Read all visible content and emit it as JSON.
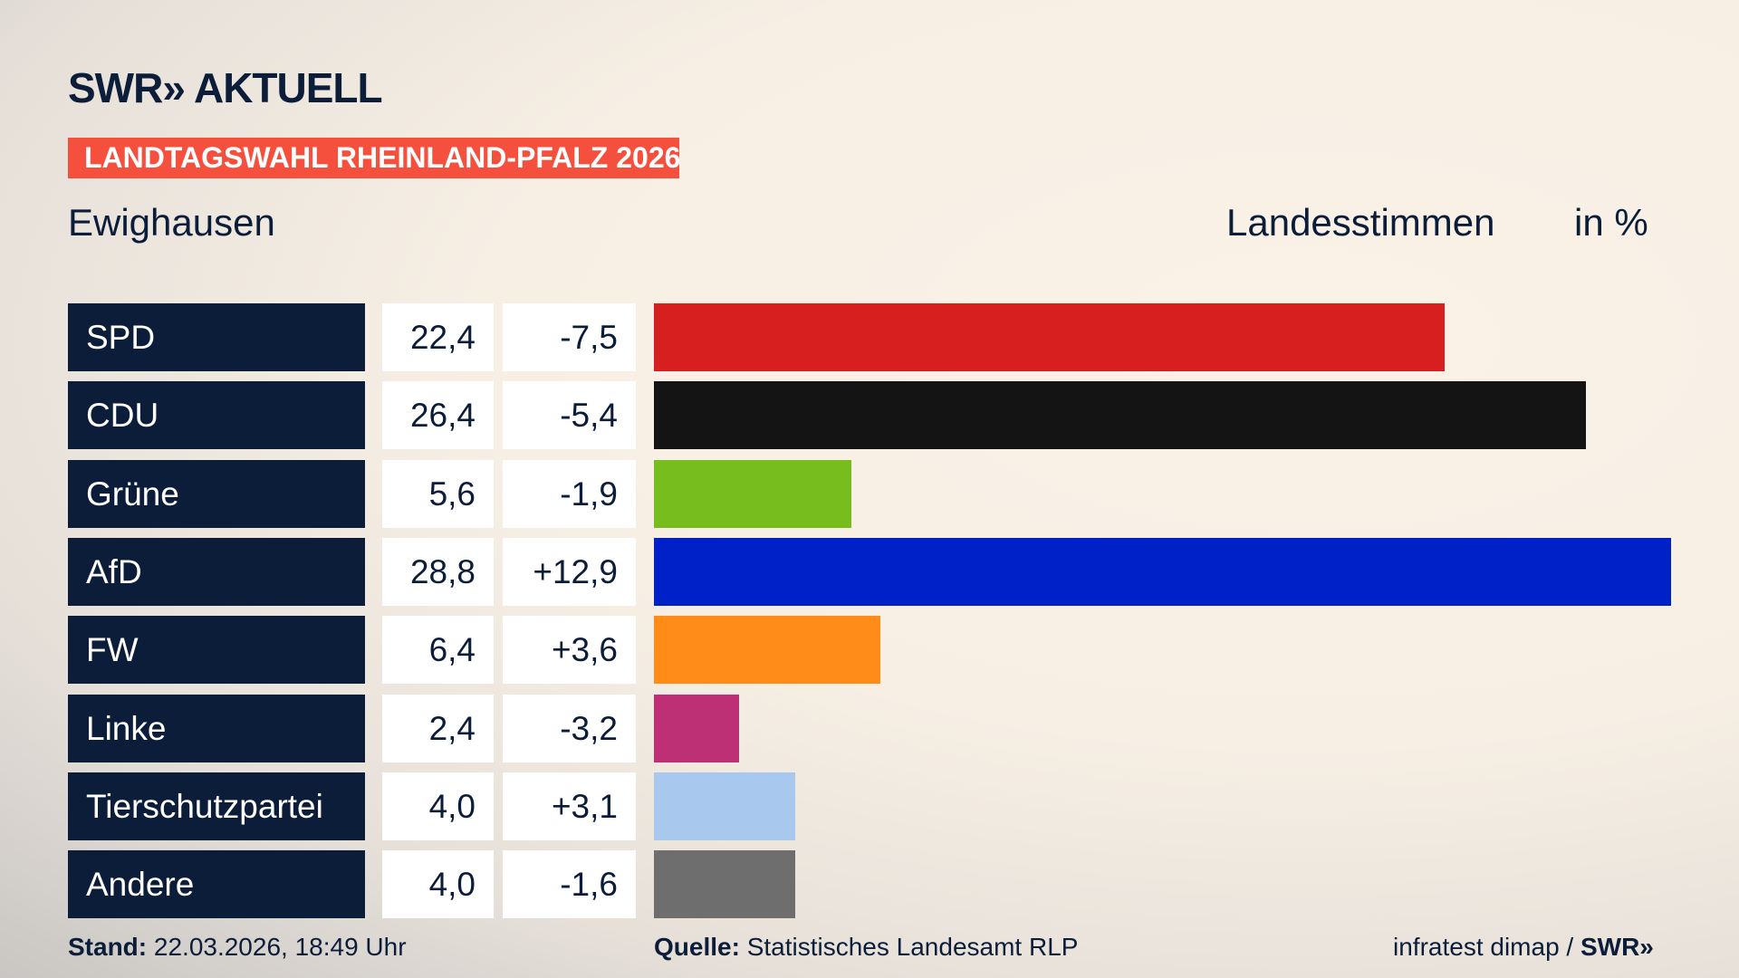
{
  "header": {
    "logo": "SWR» AKTUELL",
    "banner": "LANDTAGSWAHL RHEINLAND-PFALZ 2026",
    "place": "Ewighausen",
    "measure": "Landesstimmen",
    "unit": "in %"
  },
  "chart_data": {
    "type": "bar",
    "orientation": "horizontal",
    "title": "Landesstimmen in %",
    "categories": [
      "SPD",
      "CDU",
      "Grüne",
      "AfD",
      "FW",
      "Linke",
      "Tierschutzpartei",
      "Andere"
    ],
    "values": [
      22.4,
      26.4,
      5.6,
      28.8,
      6.4,
      2.4,
      4.0,
      4.0
    ],
    "value_labels": [
      "22,4",
      "26,4",
      "5,6",
      "28,8",
      "6,4",
      "2,4",
      "4,0",
      "4,0"
    ],
    "diff_labels": [
      "-7,5",
      "-5,4",
      "-1,9",
      "+12,9",
      "+3,6",
      "-3,2",
      "+3,1",
      "-1,6"
    ],
    "colors": [
      "#d71f1f",
      "#141414",
      "#78bd1e",
      "#0020c8",
      "#ff8c19",
      "#be3075",
      "#a9c8ee",
      "#6e6e6e"
    ],
    "xlim": [
      0,
      28.8
    ]
  },
  "footer": {
    "stand_label": "Stand:",
    "stand": "22.03.2026, 18:49 Uhr",
    "source_label": "Quelle:",
    "source": "Statistisches Landesamt RLP",
    "credit": "infratest dimap / ",
    "credit_logo": "SWR»"
  }
}
